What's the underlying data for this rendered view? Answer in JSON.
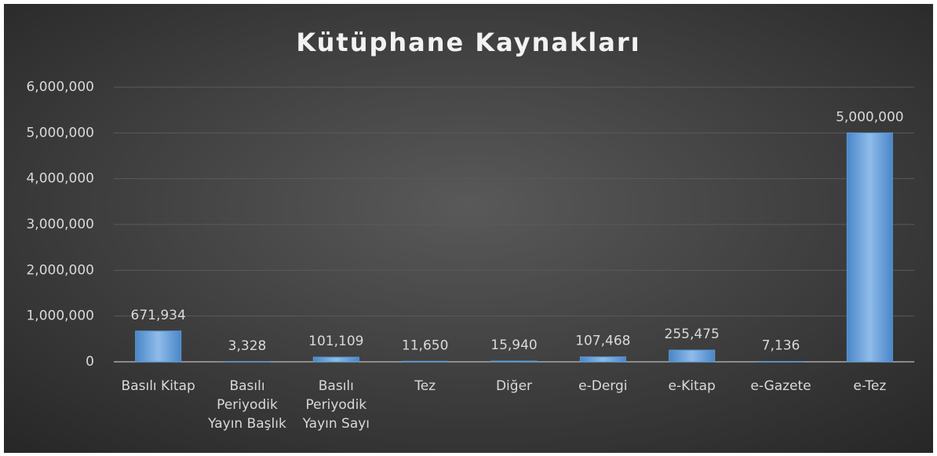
{
  "chart_data": {
    "type": "bar",
    "title": "Kütüphane Kaynakları",
    "categories": [
      "Basılı Kitap",
      "Basılı Periyodik Yayın Başlık",
      "Basılı Periyodik Yayın Sayı",
      "Tez",
      "Diğer",
      "e-Dergi",
      "e-Kitap",
      "e-Gazete",
      "e-Tez"
    ],
    "values": [
      671934,
      3328,
      101109,
      11650,
      15940,
      107468,
      255475,
      7136,
      5000000
    ],
    "value_labels": [
      "671,934",
      "3,328",
      "101,109",
      "11,650",
      "15,940",
      "107,468",
      "255,475",
      "7,136",
      "5,000,000"
    ],
    "color": "#5b9bd5",
    "ylim": [
      0,
      6000000
    ],
    "yticks": [
      0,
      {
        "value": 1000000,
        "label": "1,000,000"
      },
      {
        "value": 2000000,
        "label": "2,000,000"
      },
      {
        "value": 3000000,
        "label": "3,000,000"
      },
      {
        "value": 4000000,
        "label": "4,000,000"
      },
      {
        "value": 5000000,
        "label": "5,000,000"
      },
      {
        "value": 6000000,
        "label": "6,000,000"
      }
    ],
    "grid": true
  }
}
